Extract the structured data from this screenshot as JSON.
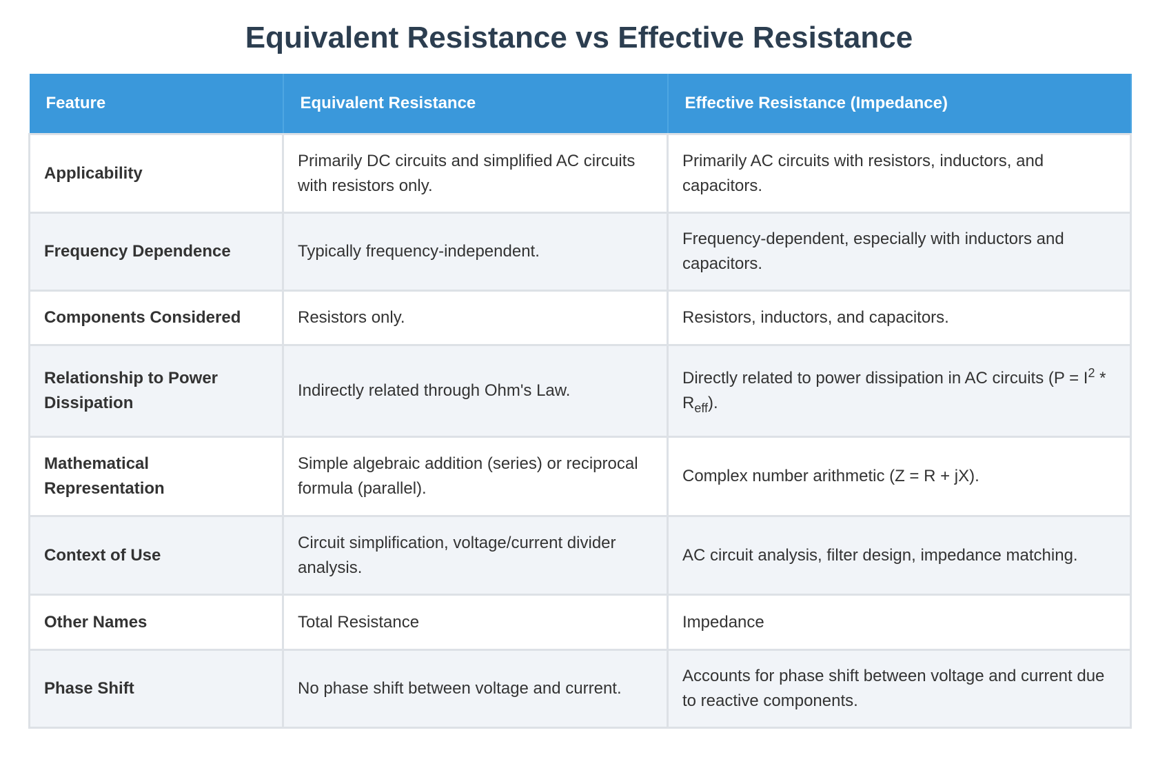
{
  "title": "Equivalent Resistance vs Effective Resistance",
  "table": {
    "header": [
      "Feature",
      "Equivalent Resistance",
      "Effective Resistance (Impedance)"
    ],
    "rows": [
      [
        "Applicability",
        "Primarily DC circuits and simplified AC circuits with resistors only.",
        "Primarily AC circuits with resistors, inductors, and capacitors."
      ],
      [
        "Frequency Dependence",
        "Typically frequency-independent.",
        "Frequency-dependent, especially with inductors and capacitors."
      ],
      [
        "Components Considered",
        "Resistors only.",
        "Resistors, inductors, and capacitors."
      ],
      [
        "Relationship to Power Dissipation",
        "Indirectly related through Ohm's Law.",
        {
          "text": "Directly related to power dissipation in AC circuits (P = I",
          "sup": "2",
          "mid": " * R",
          "sub": "eff",
          "end": ")."
        }
      ],
      [
        "Mathematical Representation",
        "Simple algebraic addition (series) or reciprocal formula (parallel).",
        "Complex number arithmetic (Z = R + jX)."
      ],
      [
        "Context of Use",
        "Circuit simplification, voltage/current divider analysis.",
        "AC circuit analysis, filter design, impedance matching."
      ],
      [
        "Other Names",
        "Total Resistance",
        "Impedance"
      ],
      [
        "Phase Shift",
        "No phase shift between voltage and current.",
        "Accounts for phase shift between voltage and current due to reactive components."
      ]
    ]
  }
}
